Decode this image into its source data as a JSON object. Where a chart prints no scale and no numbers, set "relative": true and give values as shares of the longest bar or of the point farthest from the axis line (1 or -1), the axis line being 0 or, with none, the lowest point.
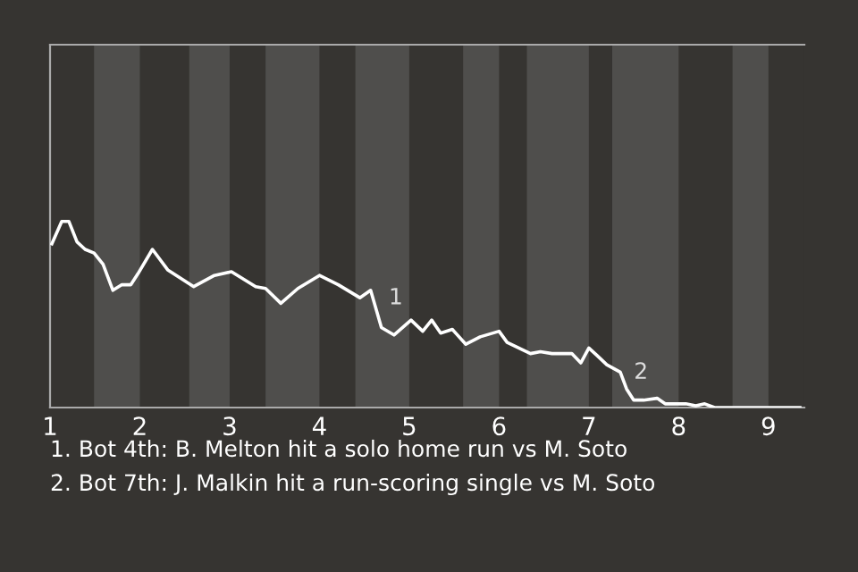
{
  "chart_data": {
    "type": "line",
    "relative": true,
    "tick_labels": "x",
    "x": [
      1.02,
      1.13,
      1.21,
      1.3,
      1.39,
      1.49,
      1.59,
      1.7,
      1.8,
      1.9,
      1.98,
      2.14,
      2.31,
      2.6,
      2.83,
      3.02,
      3.29,
      3.4,
      3.57,
      3.76,
      4.0,
      4.21,
      4.45,
      4.57,
      4.69,
      4.83,
      5.02,
      5.15,
      5.25,
      5.35,
      5.48,
      5.63,
      5.79,
      6.0,
      6.09,
      6.35,
      6.46,
      6.59,
      6.81,
      6.91,
      7.0,
      7.09,
      7.2,
      7.35,
      7.42,
      7.5,
      7.61,
      7.76,
      7.85,
      8.08,
      8.19,
      8.29,
      8.4,
      8.6,
      8.98,
      9.35
    ],
    "series": [
      {
        "color": "#ffffff",
        "values": [
          0.88,
          1,
          1,
          0.89,
          0.85,
          0.83,
          0.77,
          0.63,
          0.66,
          0.66,
          0.72,
          0.85,
          0.74,
          0.65,
          0.71,
          0.73,
          0.65,
          0.64,
          0.56,
          0.64,
          0.71,
          0.66,
          0.59,
          0.63,
          0.43,
          0.39,
          0.47,
          0.41,
          0.47,
          0.4,
          0.42,
          0.34,
          0.38,
          0.41,
          0.35,
          0.29,
          0.3,
          0.29,
          0.29,
          0.24,
          0.32,
          0.28,
          0.23,
          0.19,
          0.1,
          0.04,
          0.04,
          0.05,
          0.02,
          0.02,
          0.01,
          0.02,
          0,
          0,
          0,
          0
        ]
      }
    ],
    "xlim": [
      1,
      9.4
    ],
    "xticks": [
      1,
      2,
      3,
      4,
      5,
      6,
      7,
      8,
      9
    ],
    "bands": [
      {
        "axis": "x",
        "from": 1.49,
        "to": 2,
        "color": "#4f4e4c"
      },
      {
        "axis": "x",
        "from": 2.55,
        "to": 3,
        "color": "#4f4e4c"
      },
      {
        "axis": "x",
        "from": 3.4,
        "to": 4,
        "color": "#4f4e4c"
      },
      {
        "axis": "x",
        "from": 4.4,
        "to": 5,
        "color": "#4f4e4c"
      },
      {
        "axis": "x",
        "from": 5.6,
        "to": 6,
        "color": "#4f4e4c"
      },
      {
        "axis": "x",
        "from": 6.31,
        "to": 7,
        "color": "#4f4e4c"
      },
      {
        "axis": "x",
        "from": 7.26,
        "to": 8,
        "color": "#4f4e4c"
      },
      {
        "axis": "x",
        "from": 8.6,
        "to": 9,
        "color": "#4f4e4c"
      }
    ],
    "annotations": [
      {
        "text": "1",
        "x": 4.74,
        "y": 0.45
      },
      {
        "text": "2",
        "x": 7.47,
        "y": 0.05
      },
      "1. Bot 4th: B. Melton hit a solo home run vs M. Soto",
      "2. Bot 7th: J. Malkin hit a run-scoring single vs M. Soto"
    ],
    "grid": false,
    "legend": false,
    "marker": "none",
    "line_style": "solid"
  }
}
